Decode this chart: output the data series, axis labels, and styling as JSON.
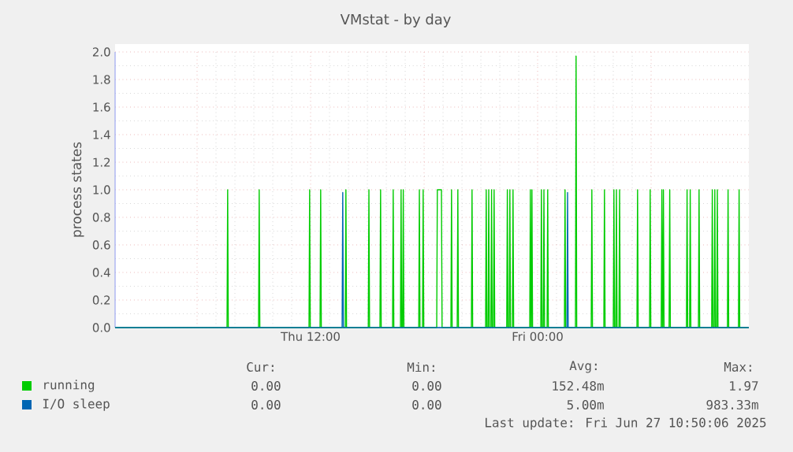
{
  "chart_data": {
    "type": "line",
    "title": "VMstat - by day",
    "ylabel": "process states",
    "xlim": [
      "2025-06-26T01:40",
      "2025-06-27T11:10"
    ],
    "xticks": [
      {
        "value": "2025-06-26T06:00",
        "label": null
      },
      {
        "value": "2025-06-26T12:00",
        "label": "Thu 12:00"
      },
      {
        "value": "2025-06-26T18:00",
        "label": null
      },
      {
        "value": "2025-06-27T00:00",
        "label": "Fri 00:00"
      },
      {
        "value": "2025-06-27T06:00",
        "label": null
      }
    ],
    "ylim": [
      0,
      2
    ],
    "yticks": [
      {
        "value": 0,
        "label": "0.0"
      },
      {
        "value": 0.2,
        "label": "0.2"
      },
      {
        "value": 0.4,
        "label": "0.4"
      },
      {
        "value": 0.6,
        "label": "0.6"
      },
      {
        "value": 0.8,
        "label": "0.8"
      },
      {
        "value": 1,
        "label": "1.0"
      },
      {
        "value": 1.2,
        "label": "1.2"
      },
      {
        "value": 1.4,
        "label": "1.4"
      },
      {
        "value": 1.6,
        "label": "1.6"
      },
      {
        "value": 1.8,
        "label": "1.8"
      },
      {
        "value": 2,
        "label": "2.0"
      }
    ],
    "grid": true,
    "legend": "bottom",
    "series": [
      {
        "name": "running",
        "color": "#00cc00",
        "x": [
          "2025-06-26T01:40",
          "2025-06-26T07:35",
          "2025-06-26T07:37",
          "2025-06-26T07:39",
          "2025-06-26T09:15",
          "2025-06-26T09:17",
          "2025-06-26T09:19",
          "2025-06-26T11:55",
          "2025-06-26T11:57",
          "2025-06-26T11:59",
          "2025-06-26T12:30",
          "2025-06-26T12:32",
          "2025-06-26T12:34",
          "2025-06-26T13:50",
          "2025-06-26T13:52",
          "2025-06-26T13:54",
          "2025-06-26T15:03",
          "2025-06-26T15:05",
          "2025-06-26T15:07",
          "2025-06-26T15:40",
          "2025-06-26T15:42",
          "2025-06-26T15:44",
          "2025-06-26T16:20",
          "2025-06-26T16:22",
          "2025-06-26T16:24",
          "2025-06-26T16:45",
          "2025-06-26T16:47",
          "2025-06-26T16:49",
          "2025-06-26T16:52",
          "2025-06-26T16:54",
          "2025-06-26T16:56",
          "2025-06-26T17:43",
          "2025-06-26T17:45",
          "2025-06-26T17:47",
          "2025-06-26T17:55",
          "2025-06-26T17:57",
          "2025-06-26T17:59",
          "2025-06-26T18:40",
          "2025-06-26T18:42",
          "2025-06-26T18:55",
          "2025-06-26T18:57",
          "2025-06-26T19:25",
          "2025-06-26T19:27",
          "2025-06-26T19:29",
          "2025-06-26T19:45",
          "2025-06-26T19:47",
          "2025-06-26T19:49",
          "2025-06-26T20:30",
          "2025-06-26T20:32",
          "2025-06-26T20:34",
          "2025-06-26T21:15",
          "2025-06-26T21:17",
          "2025-06-26T21:19",
          "2025-06-26T21:23",
          "2025-06-26T21:25",
          "2025-06-26T21:27",
          "2025-06-26T21:32",
          "2025-06-26T21:34",
          "2025-06-26T21:36",
          "2025-06-26T21:40",
          "2025-06-26T21:42",
          "2025-06-26T21:44",
          "2025-06-26T22:22",
          "2025-06-26T22:24",
          "2025-06-26T22:26",
          "2025-06-26T22:30",
          "2025-06-26T22:32",
          "2025-06-26T22:34",
          "2025-06-26T22:40",
          "2025-06-26T22:42",
          "2025-06-26T22:44",
          "2025-06-26T23:35",
          "2025-06-26T23:37",
          "2025-06-26T23:39",
          "2025-06-26T23:40",
          "2025-06-26T23:42",
          "2025-06-26T23:44",
          "2025-06-27T00:10",
          "2025-06-27T00:12",
          "2025-06-27T00:14",
          "2025-06-27T00:18",
          "2025-06-27T00:20",
          "2025-06-27T00:22",
          "2025-06-27T00:30",
          "2025-06-27T00:32",
          "2025-06-27T00:34",
          "2025-06-27T01:25",
          "2025-06-27T01:27",
          "2025-06-27T01:29",
          "2025-06-27T02:00",
          "2025-06-27T02:02",
          "2025-06-27T02:04",
          "2025-06-27T02:50",
          "2025-06-27T02:52",
          "2025-06-27T02:54",
          "2025-06-27T03:30",
          "2025-06-27T03:32",
          "2025-06-27T03:34",
          "2025-06-27T04:00",
          "2025-06-27T04:02",
          "2025-06-27T04:04",
          "2025-06-27T04:08",
          "2025-06-27T04:10",
          "2025-06-27T04:12",
          "2025-06-27T04:18",
          "2025-06-27T04:20",
          "2025-06-27T04:22",
          "2025-06-27T05:15",
          "2025-06-27T05:17",
          "2025-06-27T05:19",
          "2025-06-27T05:55",
          "2025-06-27T05:57",
          "2025-06-27T05:59",
          "2025-06-27T06:32",
          "2025-06-27T06:34",
          "2025-06-27T06:36",
          "2025-06-27T06:37",
          "2025-06-27T06:39",
          "2025-06-27T06:41",
          "2025-06-27T06:57",
          "2025-06-27T06:59",
          "2025-06-27T07:01",
          "2025-06-27T07:52",
          "2025-06-27T07:54",
          "2025-06-27T07:56",
          "2025-06-27T08:02",
          "2025-06-27T08:04",
          "2025-06-27T08:06",
          "2025-06-27T08:30",
          "2025-06-27T08:32",
          "2025-06-27T08:34",
          "2025-06-27T09:12",
          "2025-06-27T09:14",
          "2025-06-27T09:16",
          "2025-06-27T09:20",
          "2025-06-27T09:22",
          "2025-06-27T09:24",
          "2025-06-27T09:28",
          "2025-06-27T09:30",
          "2025-06-27T09:32",
          "2025-06-27T10:02",
          "2025-06-27T10:04",
          "2025-06-27T10:06",
          "2025-06-27T10:37",
          "2025-06-27T10:39",
          "2025-06-27T10:41",
          "2025-06-27T11:10"
        ],
        "values": [
          0,
          0,
          1,
          0,
          0,
          1,
          0,
          0,
          1,
          0,
          0,
          1,
          0,
          0,
          1,
          0,
          0,
          1,
          0,
          0,
          1,
          0,
          0,
          1,
          0,
          0,
          1,
          0,
          0,
          1,
          0,
          0,
          1,
          0,
          0,
          1,
          0,
          0,
          1,
          1,
          0,
          0,
          1,
          0,
          0,
          1,
          0,
          0,
          1,
          0,
          0,
          1,
          0,
          0,
          1,
          0,
          0,
          1,
          0,
          0,
          1,
          0,
          0,
          1,
          0,
          0,
          1,
          0,
          0,
          1,
          0,
          0,
          1,
          0,
          0,
          1,
          0,
          0,
          1,
          0,
          0,
          1,
          0,
          0,
          1,
          0,
          0,
          1,
          0,
          0,
          1.97,
          0,
          0,
          1,
          0,
          0,
          1,
          0,
          0,
          1,
          0,
          0,
          1,
          0,
          0,
          1,
          0,
          0,
          1,
          0,
          0,
          1,
          0,
          0,
          1,
          0,
          0,
          1,
          0,
          0,
          1,
          0,
          0,
          1,
          0,
          0,
          1,
          0,
          0,
          1,
          0,
          0,
          1,
          0,
          0,
          1,
          0,
          0,
          1,
          0,
          0,
          1,
          0,
          0,
          1,
          0,
          0
        ]
      },
      {
        "name": "I/O sleep",
        "color": "#0066b3",
        "x": [
          "2025-06-26T01:40",
          "2025-06-26T13:40",
          "2025-06-26T13:42",
          "2025-06-26T13:44",
          "2025-06-27T01:33",
          "2025-06-27T01:35",
          "2025-06-27T01:37",
          "2025-06-27T11:10"
        ],
        "values": [
          0,
          0,
          0.98,
          0,
          0,
          0.98,
          0,
          0
        ]
      }
    ],
    "annotations": [
      "Cur:",
      "Min:",
      "Avg:",
      "Max:",
      "0.00",
      "0.00",
      "152.48m",
      "1.97",
      "0.00",
      "0.00",
      "5.00m",
      "983.33m",
      "Last update: Fri Jun 27 10:50:06 2025"
    ]
  }
}
